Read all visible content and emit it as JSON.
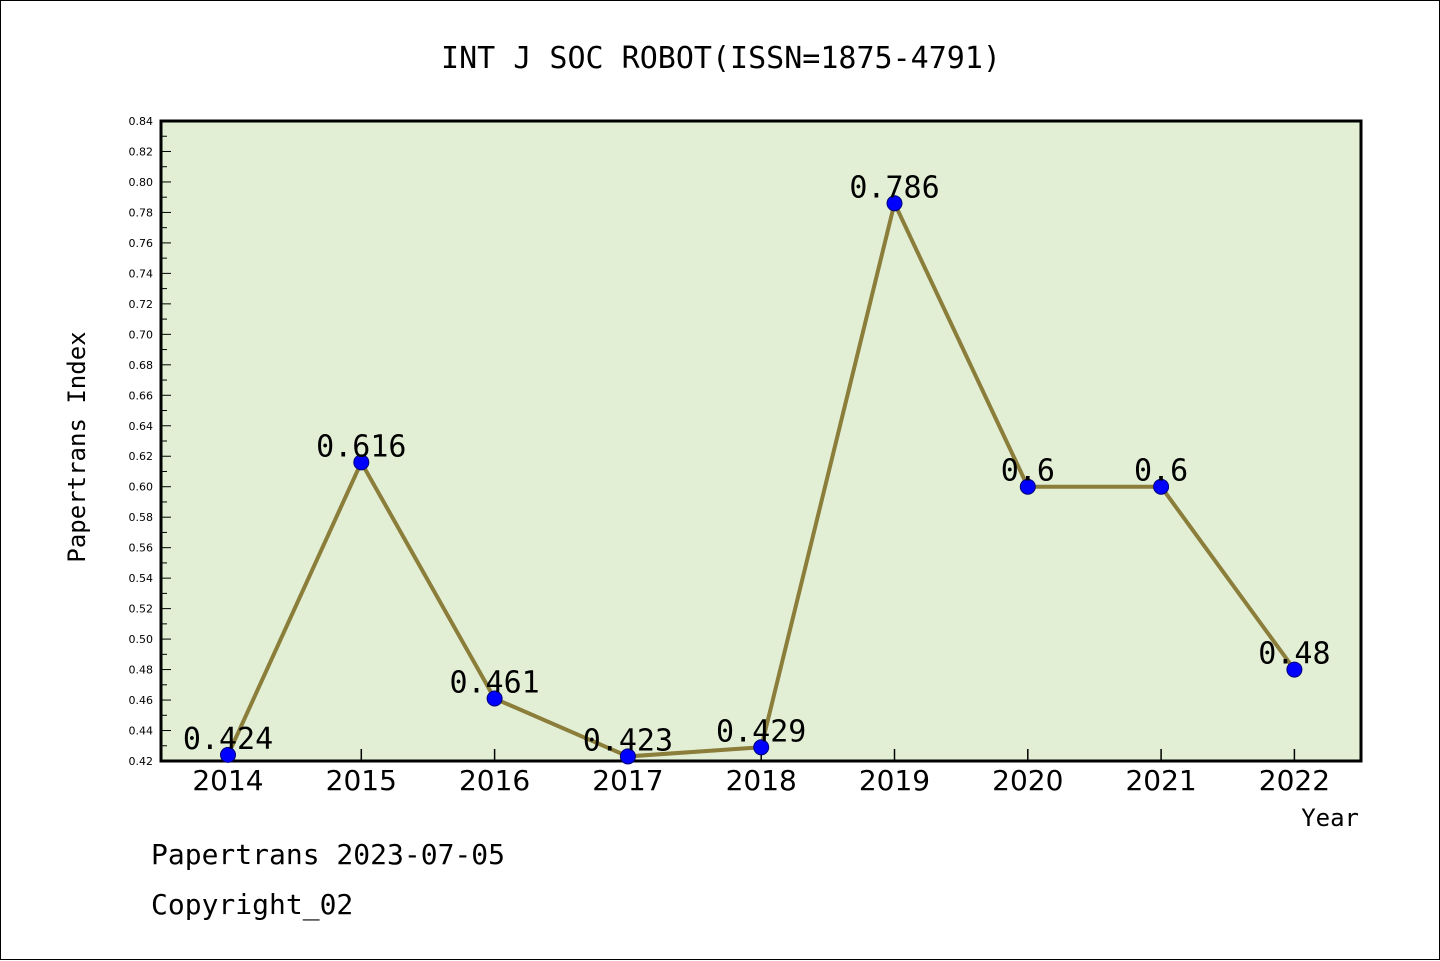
{
  "footer": {
    "line1": "Papertrans 2023-07-05",
    "line2": "Copyright_02"
  },
  "chart_data": {
    "type": "line",
    "title": "INT J SOC ROBOT(ISSN=1875-4791)",
    "xlabel": "Year",
    "ylabel": "Papertrans Index",
    "categories": [
      "2014",
      "2015",
      "2016",
      "2017",
      "2018",
      "2019",
      "2020",
      "2021",
      "2022"
    ],
    "series": [
      {
        "values": [
          0.424,
          0.616,
          0.461,
          0.423,
          0.429,
          0.786,
          0.6,
          0.6,
          0.48
        ],
        "data_labels": [
          "0.424",
          "0.616",
          "0.461",
          "0.423",
          "0.429",
          "0.786",
          "0.6",
          "0.6",
          "0.48"
        ]
      }
    ],
    "ylim": [
      0.42,
      0.84
    ],
    "yticks": [
      "0.42",
      "0.44",
      "0.46",
      "0.48",
      "0.50",
      "0.52",
      "0.54",
      "0.56",
      "0.58",
      "0.60",
      "0.62",
      "0.64",
      "0.66",
      "0.68",
      "0.70",
      "0.72",
      "0.74",
      "0.76",
      "0.78",
      "0.80",
      "0.82",
      "0.84"
    ],
    "grid": false,
    "colors": {
      "plot_background": "#e2efd5",
      "line": "#8b7d3a",
      "marker": "#0000ff",
      "axis": "#000000"
    }
  }
}
